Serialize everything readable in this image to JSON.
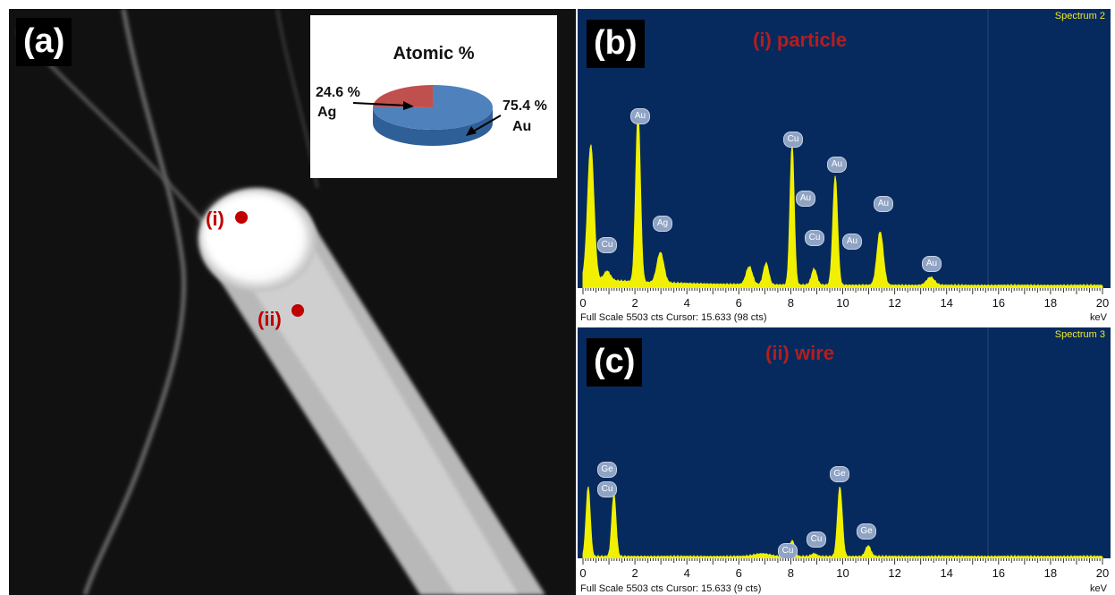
{
  "panels": {
    "a": {
      "label": "(a)",
      "pie": {
        "title": "Atomic %",
        "slices": [
          {
            "element": "Ag",
            "value_text": "24.6 %",
            "value": 24.6,
            "color": "#c0504d"
          },
          {
            "element": "Au",
            "value_text": "75.4 %",
            "value": 75.4,
            "color": "#4f81bd"
          }
        ]
      },
      "spots": [
        "(i)",
        "(ii)"
      ],
      "spot_color": "#c00000"
    },
    "b": {
      "label": "(b)",
      "title": "(i) particle",
      "spectrum_name": "Spectrum 2",
      "footer": "Full Scale 5503 cts Cursor: 15.633  (98 cts)",
      "unit": "keV",
      "peak_tags": [
        "Cu",
        "Au",
        "Ag",
        "Cu",
        "Au",
        "Cu",
        "Au",
        "Au",
        "Au",
        "Au"
      ]
    },
    "c": {
      "label": "(c)",
      "title": "(ii) wire",
      "spectrum_name": "Spectrum 3",
      "footer": "Full Scale 5503 cts Cursor: 15.633  (9 cts)",
      "unit": "keV",
      "peak_tags": [
        "Ge",
        "Cu",
        "Cu",
        "Cu",
        "Ge",
        "Ge"
      ]
    }
  },
  "axis_ticks": [
    "0",
    "2",
    "4",
    "6",
    "8",
    "10",
    "12",
    "14",
    "16",
    "18",
    "20"
  ],
  "colors": {
    "spectrum_bg": "#062a5e",
    "spectrum_fill": "#f0f000",
    "title_red": "#b51d1d",
    "spectrum_name": "#f2e82a"
  }
}
